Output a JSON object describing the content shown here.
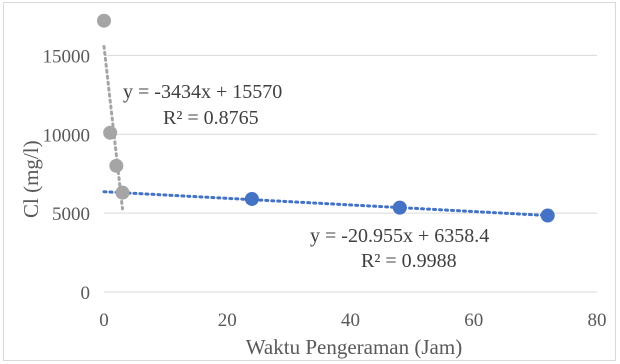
{
  "chart_data": {
    "type": "scatter",
    "xlabel": "Waktu Pengeraman (Jam)",
    "ylabel": "Cl (mg/l)",
    "xlim": [
      0,
      80
    ],
    "ylim": [
      0,
      17500
    ],
    "xticks": [
      "0",
      "20",
      "40",
      "60",
      "80"
    ],
    "yticks": [
      "0",
      "5000",
      "10000",
      "15000"
    ],
    "xtick_values": [
      0,
      20,
      40,
      60,
      80
    ],
    "ytick_values": [
      0,
      5000,
      10000,
      15000
    ],
    "grid": "horizontal",
    "legend": "none",
    "series": [
      {
        "color": "#a5a5a5",
        "x": [
          0,
          1,
          2,
          3
        ],
        "y": [
          17200,
          10100,
          8000,
          6300
        ],
        "trendline": {
          "slope": -3434,
          "intercept": 15570,
          "x_range": [
            0,
            3
          ]
        },
        "equation": "y = -3434x + 15570",
        "r2": "R² = 0.8765"
      },
      {
        "color": "#4472c4",
        "x": [
          24,
          48,
          72
        ],
        "y": [
          5900,
          5350,
          4850
        ],
        "trendline": {
          "slope": -20.955,
          "intercept": 6358.4,
          "x_range": [
            0,
            72
          ]
        },
        "equation": "y = -20.955x + 6358.4",
        "r2": "R² = 0.9988"
      }
    ],
    "gridline_color": "#d9d9d9"
  }
}
